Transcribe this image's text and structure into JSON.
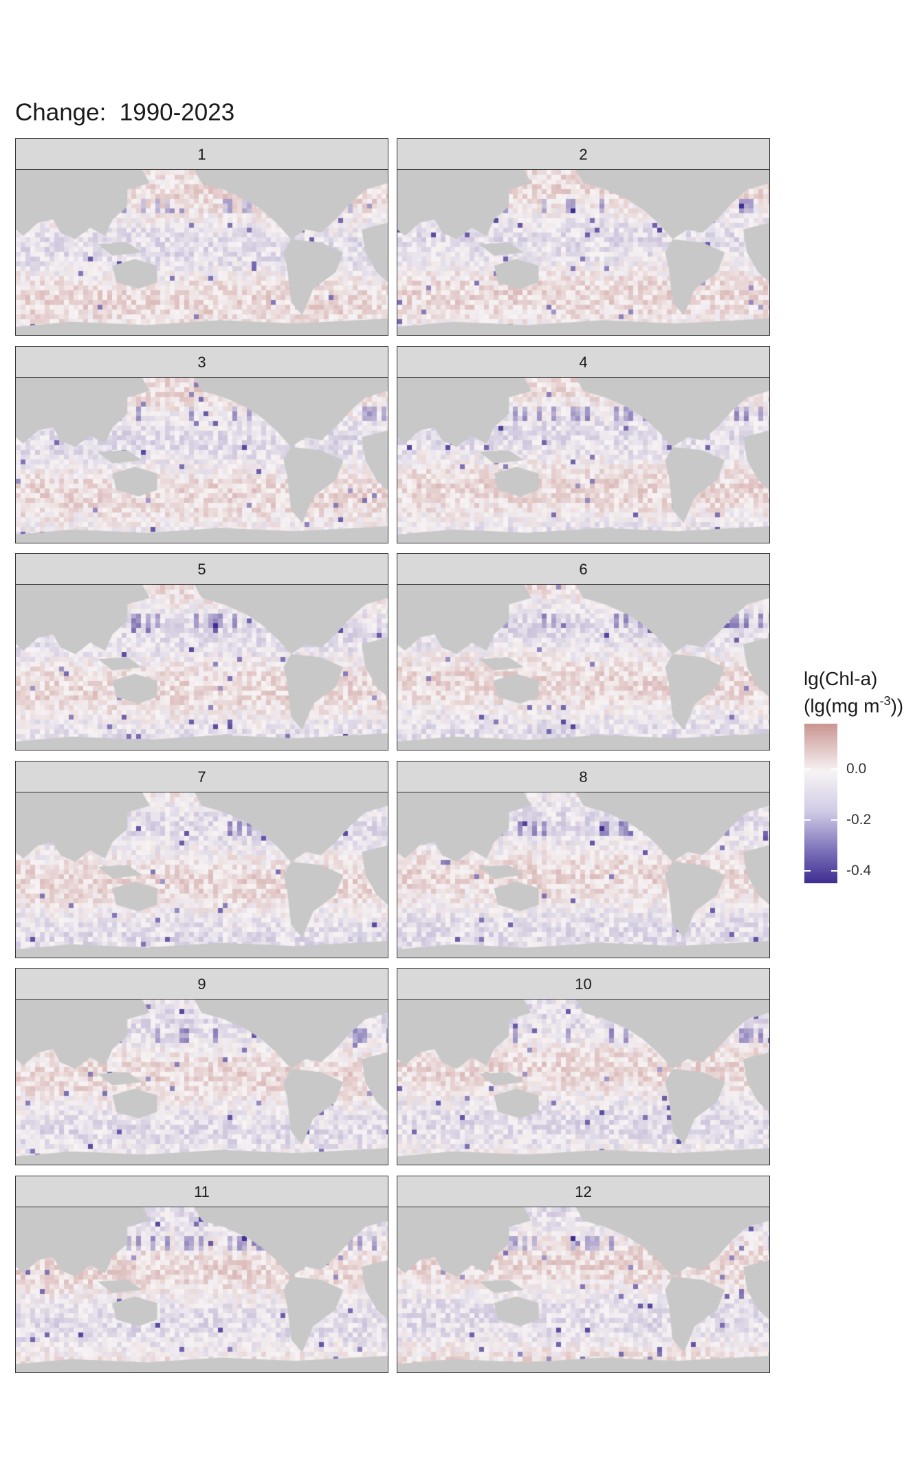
{
  "title": "Change:  1990-2023",
  "chart_data": {
    "type": "heatmap",
    "title": "Change:  1990-2023",
    "facets": [
      "1",
      "2",
      "3",
      "4",
      "5",
      "6",
      "7",
      "8",
      "9",
      "10",
      "11",
      "12"
    ],
    "legend": {
      "title_line1": "lg(Chl-a)",
      "title_line2_prefix": "(lg(mg m",
      "title_line2_sup": "-3",
      "title_line2_suffix": "))",
      "ticks": [
        {
          "value": 0.0,
          "label": "0.0"
        },
        {
          "value": -0.2,
          "label": "-0.2"
        },
        {
          "value": -0.4,
          "label": "-0.4"
        }
      ],
      "range": [
        -0.45,
        0.18
      ],
      "placement": "right"
    },
    "colors": {
      "positive": "#c99592",
      "zero": "#f7f3f4",
      "negative": "#3f2d90",
      "land": "#c8c8c8",
      "strip": "#d9d9d9"
    }
  }
}
